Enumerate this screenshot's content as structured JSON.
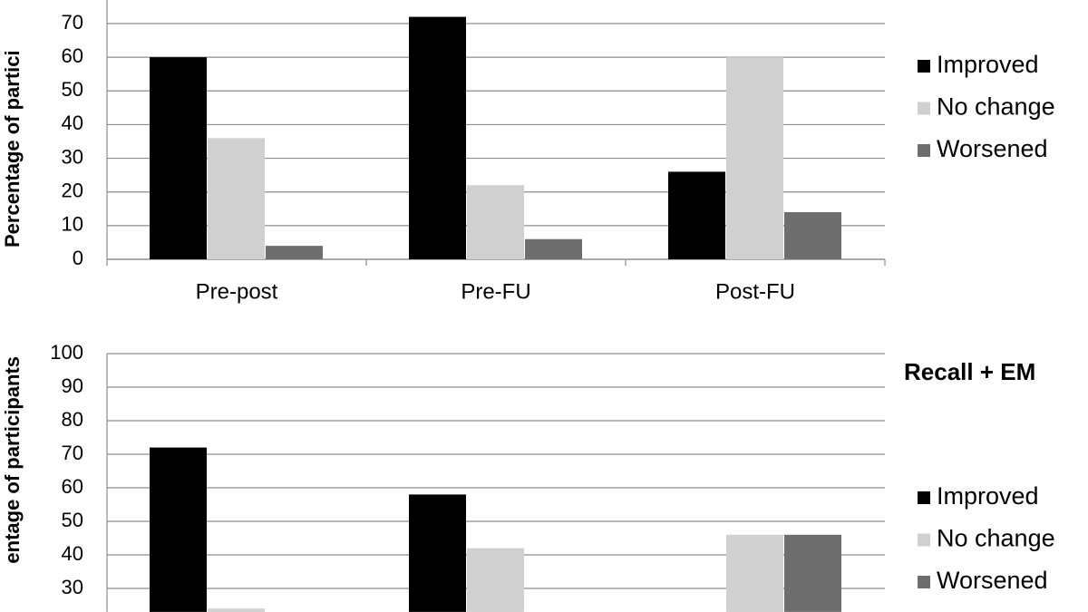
{
  "chart_data": [
    {
      "type": "bar",
      "y_label": "Percentage of partici",
      "categories": [
        "Pre-post",
        "Pre-FU",
        "Post-FU"
      ],
      "series": [
        {
          "name": "Improved",
          "color": "#000000",
          "values": [
            60,
            72,
            26
          ]
        },
        {
          "name": "No change",
          "color": "#d0d0d0",
          "values": [
            36,
            22,
            60
          ]
        },
        {
          "name": "Worsened",
          "color": "#6e6e6e",
          "values": [
            4,
            6,
            14
          ]
        }
      ],
      "ylim": [
        0,
        77
      ],
      "yticks": [
        0,
        10,
        20,
        30,
        40,
        50,
        60,
        70
      ],
      "grid": true
    },
    {
      "type": "bar",
      "title": "Recall + EM",
      "y_label": "entage of participants",
      "categories": [
        null,
        null,
        null
      ],
      "series": [
        {
          "name": "Improved",
          "color": "#000000",
          "values": [
            72,
            58,
            null
          ]
        },
        {
          "name": "No change",
          "color": "#d0d0d0",
          "values": [
            24,
            42,
            46
          ]
        },
        {
          "name": "Worsened",
          "color": "#6e6e6e",
          "values": [
            null,
            null,
            46
          ]
        }
      ],
      "ylim": [
        23,
        100
      ],
      "yticks": [
        30,
        40,
        50,
        60,
        70,
        80,
        90,
        100
      ],
      "grid": true
    }
  ]
}
